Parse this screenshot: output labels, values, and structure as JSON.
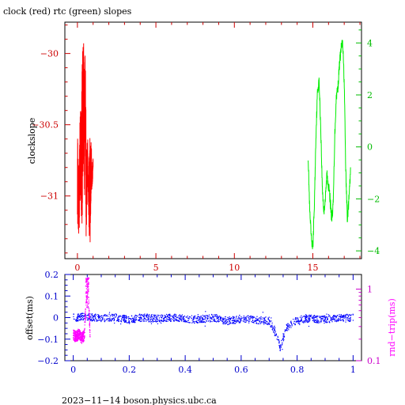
{
  "chart_data": [
    {
      "type": "line",
      "title": "clock (red) rtc (green) slopes",
      "xlabel": "",
      "ylabel": "clockslope",
      "xlim": [
        -0.8,
        18.1
      ],
      "ylim": [
        -31.44,
        -29.78
      ],
      "xticks": [
        0,
        5,
        10,
        15
      ],
      "yticks": [
        -30,
        -30.5,
        -31
      ],
      "ytick_labels": [
        "−30",
        "−30.5",
        "−31"
      ],
      "y2lim": [
        -4.3,
        4.8
      ],
      "y2ticks": [
        4,
        2,
        0,
        -2,
        -4
      ],
      "y2tick_labels": [
        "4",
        "2",
        "0",
        "−2",
        "−4"
      ],
      "colors": {
        "axis_red": "#cc0000",
        "axis_green": "#00bb00",
        "series_red": "#ff0000",
        "series_green": "#00ee00"
      },
      "series": [
        {
          "name": "clock",
          "axis": "left",
          "x": [
            0.0,
            0.05,
            0.1,
            0.15,
            0.2,
            0.25,
            0.3,
            0.35,
            0.4,
            0.45,
            0.5,
            0.55,
            0.6,
            0.65,
            0.7,
            0.75,
            0.8,
            0.85,
            0.9,
            0.95,
            1.0
          ],
          "y_min": [
            -31.15,
            -31.28,
            -31.33,
            -31.2,
            -31.02,
            -31.15,
            -31.25,
            -30.95,
            -30.85,
            -31.05,
            -30.5,
            -31.3,
            -31.2,
            -30.95,
            -31.05,
            -31.3,
            -31.35,
            -31.25,
            -31.0,
            -30.95,
            -30.8
          ],
          "y_max": [
            -30.55,
            -30.7,
            -30.85,
            -30.5,
            -30.35,
            -30.25,
            -30.05,
            -29.9,
            -29.85,
            -30.15,
            -29.95,
            -30.45,
            -30.75,
            -30.5,
            -30.9,
            -30.7,
            -30.55,
            -30.6,
            -30.65,
            -30.85,
            -30.7
          ]
        },
        {
          "name": "rtc",
          "axis": "right",
          "x": [
            14.7,
            14.8,
            14.9,
            15.0,
            15.1,
            15.2,
            15.3,
            15.4,
            15.5,
            15.6,
            15.7,
            15.8,
            15.9,
            16.0,
            16.1,
            16.2,
            16.3,
            16.4,
            16.5,
            16.6,
            16.7,
            16.8,
            16.9,
            17.0,
            17.1,
            17.2,
            17.3,
            17.4
          ],
          "y": [
            -0.3,
            -2.5,
            -3.5,
            -3.9,
            -2.2,
            0.5,
            2.2,
            2.5,
            0.8,
            -1.5,
            -2.5,
            -2.0,
            -1.0,
            -1.5,
            -2.0,
            -2.8,
            -2.2,
            0.5,
            2.0,
            2.3,
            3.2,
            3.8,
            4.0,
            2.5,
            -1.0,
            -2.8,
            -2.0,
            -1.0
          ]
        }
      ]
    },
    {
      "type": "scatter",
      "xlabel": "",
      "ylabel": "offset(ms)",
      "y2label": "rnd−trip(ms)",
      "xlim": [
        -0.03,
        1.03
      ],
      "ylim": [
        -0.2,
        0.2
      ],
      "xticks": [
        0,
        0.2,
        0.4,
        0.6,
        0.8,
        1
      ],
      "xtick_labels": [
        "0",
        "0.2",
        "0.4",
        "0.6",
        "0.8",
        "1"
      ],
      "yticks": [
        0.2,
        0.1,
        0,
        -0.1,
        -0.2
      ],
      "ytick_labels": [
        "0.2",
        "0.1",
        "0",
        "−0.1",
        "−0.2"
      ],
      "y2scale": "log",
      "y2lim": [
        0.1,
        1.6
      ],
      "y2ticks": [
        1,
        0.1
      ],
      "y2tick_labels": [
        "1",
        "0.1"
      ],
      "colors": {
        "axis_blue": "#0000cc",
        "points_blue": "#0000ff",
        "axis_magenta": "#cc00cc",
        "points_magenta": "#ff00ff"
      },
      "series": [
        {
          "name": "offset",
          "axis": "left",
          "x": [
            0.0,
            0.05,
            0.1,
            0.15,
            0.2,
            0.25,
            0.3,
            0.35,
            0.4,
            0.45,
            0.5,
            0.55,
            0.6,
            0.65,
            0.7,
            0.72,
            0.74,
            0.76,
            0.8,
            0.85,
            0.9,
            0.95,
            1.0
          ],
          "y": [
            0.0,
            0.005,
            -0.005,
            0.002,
            -0.01,
            0.0,
            -0.005,
            0.0,
            -0.005,
            -0.01,
            0.0,
            -0.015,
            -0.005,
            -0.01,
            -0.015,
            -0.06,
            -0.14,
            -0.05,
            -0.01,
            -0.005,
            -0.008,
            -0.003,
            0.0
          ]
        },
        {
          "name": "rnd-trip",
          "axis": "right",
          "x": [
            0.0,
            0.01,
            0.02,
            0.03,
            0.04,
            0.05,
            0.06
          ],
          "y": [
            0.23,
            0.22,
            0.24,
            0.21,
            0.23,
            0.9,
            0.22
          ]
        }
      ]
    }
  ],
  "footer": "2023−11−14  boson.physics.ubc.ca"
}
